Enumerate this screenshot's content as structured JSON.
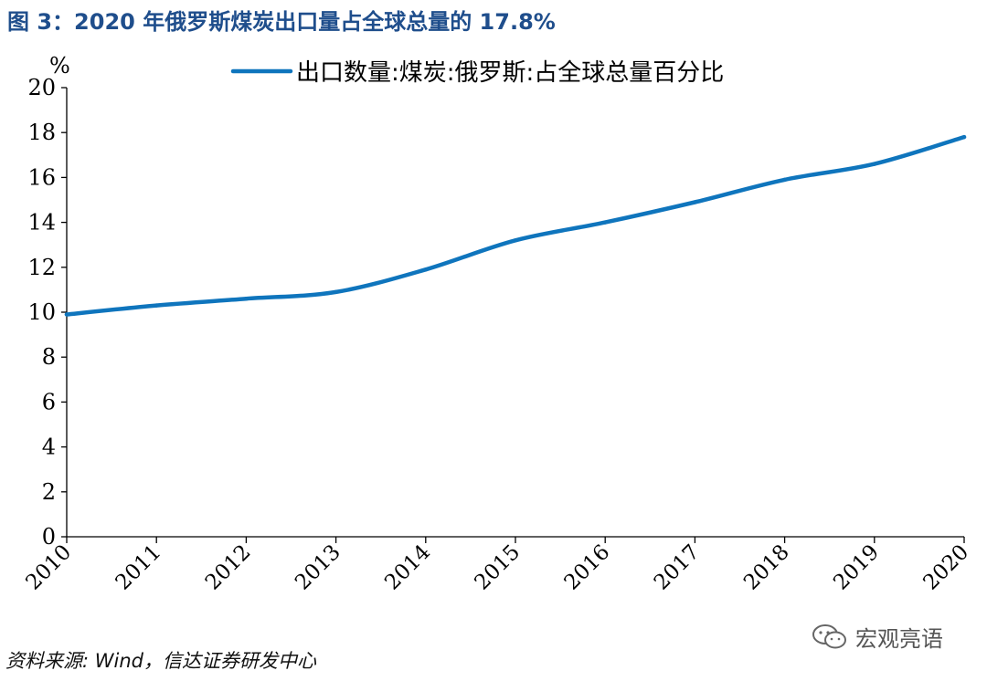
{
  "figure_title": "图 3：2020 年俄罗斯煤炭出口量占全球总量的 17.8%",
  "source": "资料来源: Wind，信达证券研发中心",
  "watermark": "宏观亮语",
  "colors": {
    "title": "#1f4e8c",
    "line": "#0f75bd",
    "axis": "#000000"
  },
  "chart_data": {
    "type": "line",
    "title": "",
    "xlabel": "",
    "ylabel": "%",
    "x": [
      "2010",
      "2011",
      "2012",
      "2013",
      "2014",
      "2015",
      "2016",
      "2017",
      "2018",
      "2019",
      "2020"
    ],
    "series": [
      {
        "name": "出口数量:煤炭:俄罗斯:占全球总量百分比",
        "values": [
          9.9,
          10.3,
          10.6,
          10.9,
          11.9,
          13.2,
          14.0,
          14.9,
          15.9,
          16.6,
          17.8
        ]
      }
    ],
    "ylim": [
      0,
      20
    ],
    "yticks": [
      0,
      2,
      4,
      6,
      8,
      10,
      12,
      14,
      16,
      18,
      20
    ],
    "grid": false,
    "legend": "top-center"
  }
}
